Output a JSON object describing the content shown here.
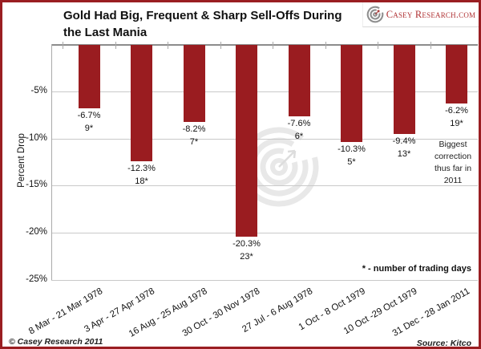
{
  "header": {
    "title_line1": "Gold Had Big, Frequent & Sharp Sell-Offs During",
    "title_line2": "the Last Mania",
    "logo_text": "Casey Research.com"
  },
  "chart_data": {
    "type": "bar",
    "title": "Gold Had Big, Frequent & Sharp Sell-Offs During the Last Mania",
    "ylabel": "Percent Drop",
    "ylim": [
      -25,
      0
    ],
    "grid": true,
    "ytick_labels": [
      "-5%",
      "-10%",
      "-15%",
      "-20%",
      "-25%"
    ],
    "ytick_values": [
      -5,
      -10,
      -15,
      -20,
      -25
    ],
    "categories": [
      "8 Mar - 21 Mar 1978",
      "3 Apr - 27 Apr 1978",
      "16 Aug - 25 Aug 1978",
      "30 Oct - 30 Nov 1978",
      "27 Jul - 6 Aug 1978",
      "1 Oct - 8 Oct 1979",
      "10 Oct -29 Oct 1979",
      "31 Dec - 28 Jan 2011"
    ],
    "values": [
      -6.7,
      -12.3,
      -8.2,
      -20.3,
      -7.6,
      -10.3,
      -9.4,
      -6.2
    ],
    "value_labels": [
      "-6.7%",
      "-12.3%",
      "-8.2%",
      "-20.3%",
      "-7.6%",
      "-10.3%",
      "-9.4%",
      "-6.2%"
    ],
    "trading_days_labels": [
      "9*",
      "18*",
      "7*",
      "23*",
      "6*",
      "5*",
      "13*",
      "19*"
    ],
    "annotation_lines": [
      "Biggest",
      "correction",
      "thus far in",
      "2011"
    ],
    "note": "* - number of trading days",
    "colors": {
      "bar": "#9a1c20",
      "border": "#9a1e22",
      "grid": "#c9c9c9",
      "axis": "#8c8c8c",
      "watermark": "#e8e8e8",
      "logo_red": "#b03234"
    }
  },
  "footer": {
    "copyright": "© Casey Research 2011",
    "source": "Source: Kitco"
  }
}
